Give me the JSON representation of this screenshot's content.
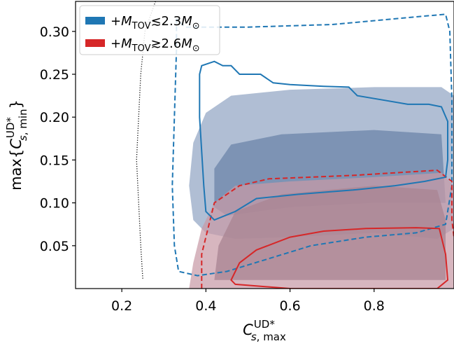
{
  "chart_data": {
    "type": "contour",
    "xlabel": "C_{s,max}^{UD*}",
    "ylabel": "max{C_{s,min}^{UD*}}",
    "xlim": [
      0.09,
      0.99
    ],
    "ylim": [
      0.0,
      0.335
    ],
    "xticks": [
      0.2,
      0.4,
      0.6,
      0.8
    ],
    "yticks": [
      0.05,
      0.1,
      0.15,
      0.2,
      0.25,
      0.3
    ],
    "xtick_labels": [
      "0.2",
      "0.4",
      "0.6",
      "0.8"
    ],
    "ytick_labels": [
      "0.05",
      "0.10",
      "0.15",
      "0.20",
      "0.25",
      "0.30"
    ],
    "legend_position": "top-left",
    "legend": [
      {
        "label": "+M_TOV≲2.3M_⊙",
        "color": "#1f77b4"
      },
      {
        "label": "+M_TOV≳2.6M_⊙",
        "color": "#d62728"
      }
    ],
    "colors": {
      "blue_fill_outer": "#b0bed4",
      "blue_fill_inner": "#7d93b4",
      "red_fill_outer": "#c79aa6",
      "red_fill_inner": "#aa8594",
      "blue_line": "#1f77b4",
      "red_line": "#d62728",
      "prior_line": "#000000"
    },
    "regions": {
      "blue_outer_fill": [
        [
          0.37,
          0.08
        ],
        [
          0.36,
          0.12
        ],
        [
          0.37,
          0.17
        ],
        [
          0.4,
          0.205
        ],
        [
          0.46,
          0.225
        ],
        [
          0.6,
          0.232
        ],
        [
          0.8,
          0.235
        ],
        [
          0.96,
          0.235
        ],
        [
          0.99,
          0.225
        ],
        [
          0.99,
          0.07
        ],
        [
          0.95,
          0.058
        ],
        [
          0.8,
          0.065
        ],
        [
          0.6,
          0.06
        ],
        [
          0.47,
          0.058
        ],
        [
          0.4,
          0.065
        ],
        [
          0.37,
          0.08
        ]
      ],
      "blue_inner_fill": [
        [
          0.42,
          0.095
        ],
        [
          0.42,
          0.14
        ],
        [
          0.46,
          0.168
        ],
        [
          0.58,
          0.18
        ],
        [
          0.8,
          0.185
        ],
        [
          0.96,
          0.18
        ],
        [
          0.97,
          0.1
        ],
        [
          0.8,
          0.1
        ],
        [
          0.6,
          0.095
        ],
        [
          0.45,
          0.085
        ],
        [
          0.42,
          0.095
        ]
      ],
      "red_outer_fill": [
        [
          0.36,
          0.0
        ],
        [
          0.37,
          0.03
        ],
        [
          0.39,
          0.07
        ],
        [
          0.42,
          0.1
        ],
        [
          0.47,
          0.12
        ],
        [
          0.6,
          0.125
        ],
        [
          0.8,
          0.13
        ],
        [
          0.96,
          0.135
        ],
        [
          0.99,
          0.12
        ],
        [
          0.99,
          0.0
        ],
        [
          0.36,
          0.0
        ]
      ],
      "red_inner_fill": [
        [
          0.42,
          0.01
        ],
        [
          0.43,
          0.05
        ],
        [
          0.47,
          0.09
        ],
        [
          0.58,
          0.11
        ],
        [
          0.8,
          0.12
        ],
        [
          0.95,
          0.115
        ],
        [
          0.97,
          0.08
        ],
        [
          0.97,
          0.01
        ],
        [
          0.42,
          0.01
        ]
      ],
      "blue_inner_contour": [
        [
          0.385,
          0.25
        ],
        [
          0.39,
          0.26
        ],
        [
          0.42,
          0.265
        ],
        [
          0.44,
          0.26
        ],
        [
          0.46,
          0.26
        ],
        [
          0.48,
          0.25
        ],
        [
          0.53,
          0.25
        ],
        [
          0.56,
          0.24
        ],
        [
          0.6,
          0.238
        ],
        [
          0.68,
          0.236
        ],
        [
          0.74,
          0.235
        ],
        [
          0.76,
          0.225
        ],
        [
          0.82,
          0.22
        ],
        [
          0.88,
          0.215
        ],
        [
          0.93,
          0.215
        ],
        [
          0.96,
          0.212
        ],
        [
          0.975,
          0.195
        ],
        [
          0.975,
          0.15
        ],
        [
          0.97,
          0.13
        ],
        [
          0.92,
          0.125
        ],
        [
          0.85,
          0.12
        ],
        [
          0.75,
          0.115
        ],
        [
          0.62,
          0.11
        ],
        [
          0.52,
          0.105
        ],
        [
          0.47,
          0.09
        ],
        [
          0.42,
          0.08
        ],
        [
          0.4,
          0.09
        ],
        [
          0.395,
          0.12
        ],
        [
          0.39,
          0.16
        ],
        [
          0.385,
          0.2
        ],
        [
          0.385,
          0.25
        ]
      ],
      "blue_outer_contour": [
        [
          0.33,
          0.315
        ],
        [
          0.33,
          0.28
        ],
        [
          0.325,
          0.2
        ],
        [
          0.32,
          0.12
        ],
        [
          0.325,
          0.05
        ],
        [
          0.335,
          0.02
        ],
        [
          0.38,
          0.015
        ],
        [
          0.45,
          0.02
        ],
        [
          0.55,
          0.035
        ],
        [
          0.65,
          0.05
        ],
        [
          0.78,
          0.06
        ],
        [
          0.9,
          0.065
        ],
        [
          0.97,
          0.075
        ],
        [
          0.985,
          0.12
        ],
        [
          0.985,
          0.22
        ],
        [
          0.98,
          0.3
        ],
        [
          0.97,
          0.32
        ],
        [
          0.9,
          0.317
        ],
        [
          0.7,
          0.308
        ],
        [
          0.5,
          0.305
        ],
        [
          0.4,
          0.305
        ],
        [
          0.35,
          0.305
        ],
        [
          0.33,
          0.315
        ]
      ],
      "red_outer_contour": [
        [
          0.39,
          0.0
        ],
        [
          0.39,
          0.04
        ],
        [
          0.4,
          0.06
        ],
        [
          0.42,
          0.1
        ],
        [
          0.48,
          0.12
        ],
        [
          0.55,
          0.128
        ],
        [
          0.65,
          0.13
        ],
        [
          0.75,
          0.132
        ],
        [
          0.88,
          0.136
        ],
        [
          0.95,
          0.138
        ],
        [
          0.985,
          0.125
        ],
        [
          0.985,
          0.08
        ],
        [
          0.99,
          0.06
        ]
      ],
      "red_inner_contour": [
        [
          0.46,
          0.01
        ],
        [
          0.48,
          0.03
        ],
        [
          0.52,
          0.045
        ],
        [
          0.6,
          0.06
        ],
        [
          0.68,
          0.067
        ],
        [
          0.78,
          0.07
        ],
        [
          0.9,
          0.071
        ],
        [
          0.955,
          0.07
        ],
        [
          0.97,
          0.04
        ],
        [
          0.975,
          0.01
        ],
        [
          0.95,
          0.0
        ],
        [
          0.8,
          0.0
        ],
        [
          0.6,
          0.0
        ],
        [
          0.47,
          0.005
        ],
        [
          0.46,
          0.01
        ]
      ],
      "prior_dotted": [
        [
          0.28,
          0.335
        ],
        [
          0.255,
          0.3
        ],
        [
          0.245,
          0.25
        ],
        [
          0.24,
          0.2
        ],
        [
          0.235,
          0.15
        ],
        [
          0.24,
          0.1
        ],
        [
          0.245,
          0.05
        ],
        [
          0.25,
          0.01
        ]
      ]
    }
  }
}
